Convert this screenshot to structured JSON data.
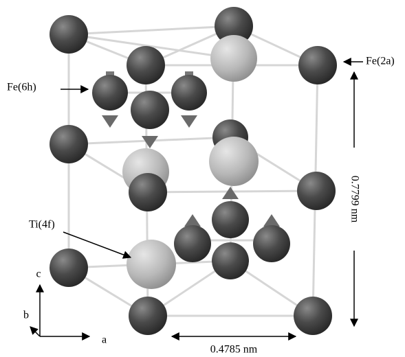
{
  "labels": {
    "fe6h": "Fe(6h)",
    "fe2a": "Fe(2a)",
    "ti4f": "Ti(4f)"
  },
  "dimensions": {
    "c_length": "0.7799 nm",
    "a_length": "0.4785 nm"
  },
  "axes": {
    "a": "a",
    "b": "b",
    "c": "c"
  }
}
